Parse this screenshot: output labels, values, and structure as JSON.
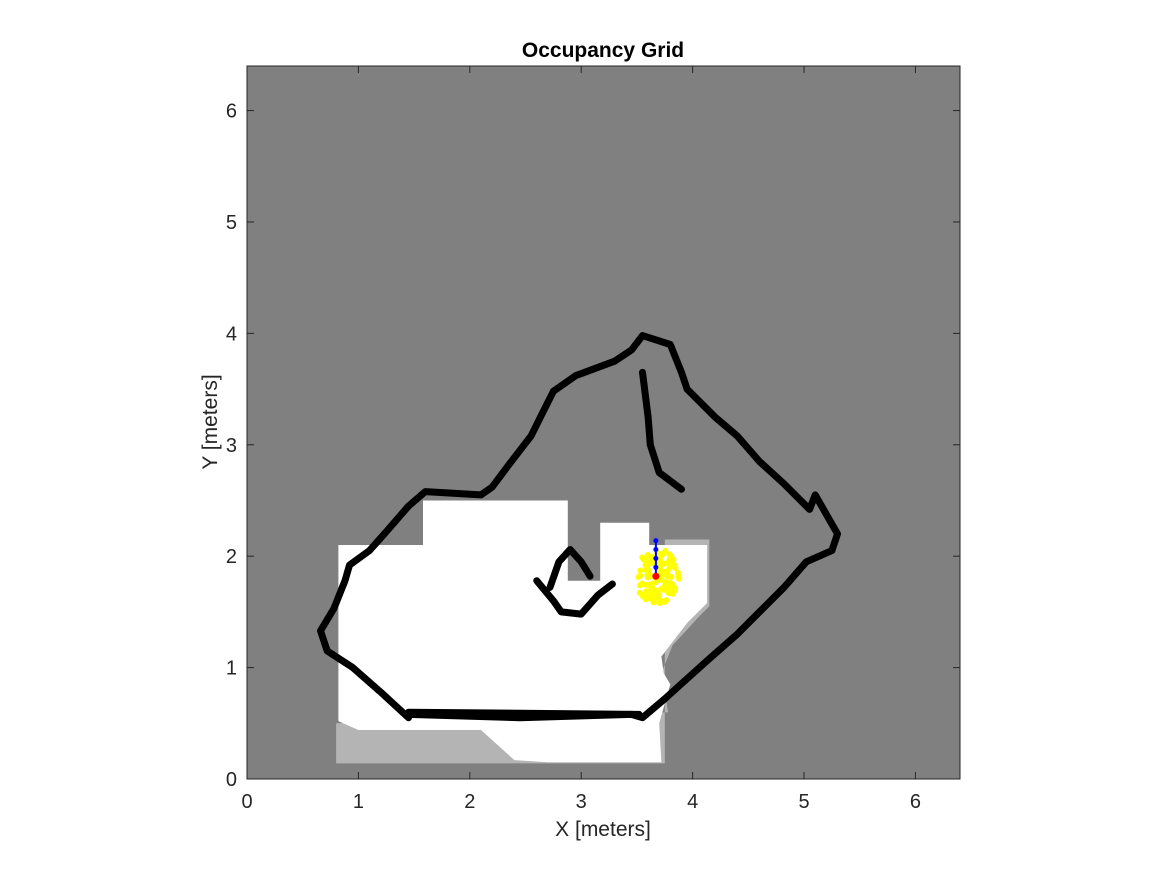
{
  "chart_data": {
    "type": "heatmap",
    "title": "Occupancy Grid",
    "xlabel": "X [meters]",
    "ylabel": "Y [meters]",
    "xlim": [
      0,
      6.4
    ],
    "ylim": [
      0,
      6.4
    ],
    "xticks": [
      0,
      1,
      2,
      3,
      4,
      5,
      6
    ],
    "yticks": [
      0,
      1,
      2,
      3,
      4,
      5,
      6
    ],
    "xtick_labels": [
      "0",
      "1",
      "2",
      "3",
      "4",
      "5",
      "6"
    ],
    "ytick_labels": [
      "0",
      "1",
      "2",
      "3",
      "4",
      "5",
      "6"
    ],
    "grid": false,
    "legend": "none",
    "colors": {
      "unknown": "#808080",
      "free": "#ffffff",
      "partial_free": "#b4b4b4",
      "occupied": "#000000",
      "particles": "#ffff00",
      "path": "#0000ff",
      "pose": "#ff0000"
    },
    "free_regions": [
      [
        [
          0.82,
          0.52
        ],
        [
          0.82,
          2.1
        ],
        [
          1.58,
          2.1
        ],
        [
          1.58,
          2.5
        ],
        [
          2.88,
          2.5
        ],
        [
          2.88,
          1.78
        ],
        [
          3.17,
          1.78
        ],
        [
          3.17,
          2.3
        ],
        [
          3.61,
          2.3
        ],
        [
          3.61,
          2.1
        ],
        [
          4.13,
          2.1
        ],
        [
          4.13,
          1.58
        ],
        [
          3.95,
          1.4
        ],
        [
          3.72,
          1.1
        ],
        [
          3.74,
          0.95
        ],
        [
          3.8,
          0.85
        ],
        [
          3.7,
          0.5
        ],
        [
          3.72,
          0.15
        ],
        [
          2.7,
          0.15
        ],
        [
          2.4,
          0.17
        ],
        [
          2.3,
          0.26
        ],
        [
          2.1,
          0.44
        ],
        [
          1.0,
          0.44
        ]
      ]
    ],
    "partial_regions": [
      [
        [
          0.8,
          0.5
        ],
        [
          0.8,
          0.14
        ],
        [
          3.75,
          0.14
        ],
        [
          3.75,
          2.15
        ],
        [
          4.15,
          2.15
        ],
        [
          4.15,
          1.55
        ],
        [
          4.05,
          1.45
        ],
        [
          3.82,
          1.2
        ],
        [
          3.72,
          0.95
        ],
        [
          3.78,
          0.6
        ]
      ]
    ],
    "occupied_walls": [
      [
        [
          1.45,
          0.55
        ],
        [
          1.2,
          0.78
        ],
        [
          0.95,
          1.0
        ],
        [
          0.72,
          1.15
        ],
        [
          0.66,
          1.33
        ],
        [
          0.78,
          1.53
        ],
        [
          0.88,
          1.78
        ],
        [
          0.92,
          1.92
        ],
        [
          1.1,
          2.05
        ],
        [
          1.25,
          2.22
        ],
        [
          1.45,
          2.45
        ],
        [
          1.6,
          2.58
        ],
        [
          2.1,
          2.55
        ],
        [
          2.2,
          2.62
        ],
        [
          2.35,
          2.82
        ],
        [
          2.55,
          3.08
        ],
        [
          2.65,
          3.28
        ],
        [
          2.75,
          3.48
        ],
        [
          2.95,
          3.62
        ],
        [
          3.3,
          3.75
        ],
        [
          3.45,
          3.85
        ],
        [
          3.55,
          3.98
        ],
        [
          3.8,
          3.9
        ],
        [
          3.9,
          3.65
        ],
        [
          3.95,
          3.5
        ],
        [
          4.2,
          3.25
        ],
        [
          4.4,
          3.08
        ],
        [
          4.6,
          2.85
        ],
        [
          4.82,
          2.65
        ],
        [
          5.05,
          2.42
        ],
        [
          5.1,
          2.55
        ],
        [
          5.3,
          2.2
        ],
        [
          5.25,
          2.05
        ],
        [
          5.02,
          1.95
        ],
        [
          4.82,
          1.72
        ],
        [
          4.6,
          1.5
        ],
        [
          4.4,
          1.3
        ],
        [
          4.15,
          1.08
        ],
        [
          3.95,
          0.9
        ],
        [
          3.75,
          0.72
        ],
        [
          3.55,
          0.55
        ],
        [
          3.45,
          0.58
        ],
        [
          2.45,
          0.55
        ],
        [
          1.45,
          0.58
        ]
      ],
      [
        [
          3.55,
          3.65
        ],
        [
          3.6,
          3.25
        ],
        [
          3.62,
          3.0
        ],
        [
          3.7,
          2.75
        ],
        [
          3.9,
          2.6
        ]
      ],
      [
        [
          2.6,
          1.78
        ],
        [
          2.75,
          1.6
        ],
        [
          2.82,
          1.5
        ],
        [
          3.0,
          1.48
        ],
        [
          3.15,
          1.65
        ],
        [
          3.28,
          1.75
        ]
      ],
      [
        [
          2.72,
          1.72
        ],
        [
          2.8,
          1.95
        ],
        [
          2.9,
          2.06
        ],
        [
          3.0,
          1.95
        ],
        [
          3.08,
          1.82
        ]
      ],
      [
        [
          1.45,
          0.6
        ],
        [
          3.52,
          0.58
        ]
      ]
    ],
    "particles_center": [
      3.68,
      1.82
    ],
    "particles_extent": [
      0.2,
      0.25
    ],
    "path": [
      [
        3.67,
        1.82
      ],
      [
        3.67,
        1.9
      ],
      [
        3.67,
        1.98
      ],
      [
        3.67,
        2.06
      ],
      [
        3.67,
        2.14
      ]
    ],
    "pose": [
      3.67,
      1.82
    ]
  }
}
